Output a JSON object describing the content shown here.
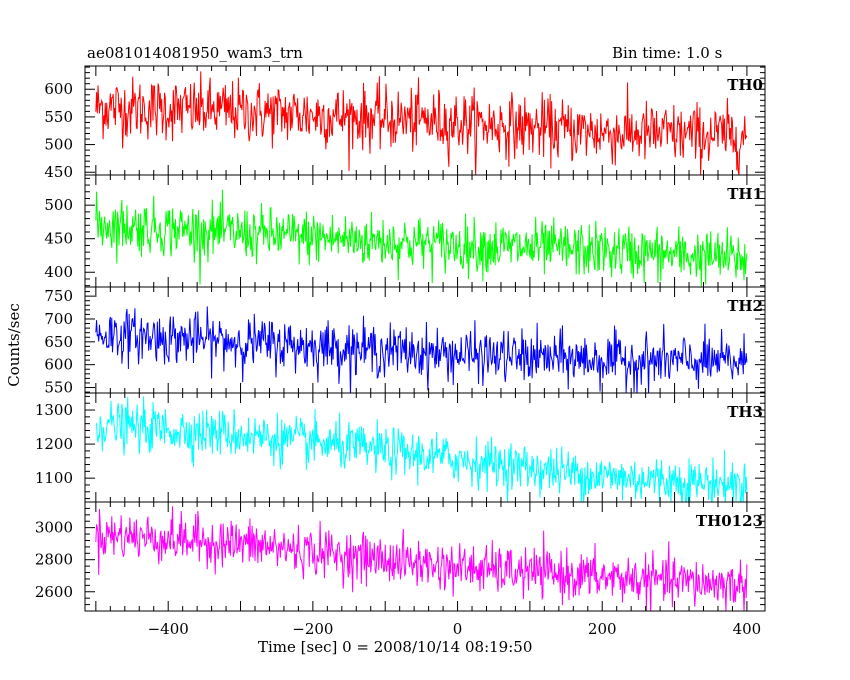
{
  "chart_data": {
    "type": "line",
    "title_left": "ae081014081950_wam3_trn",
    "title_right": "Bin time: 1.0 s",
    "xlabel": "Time [sec] 0 = 2008/10/14 08:19:50",
    "ylabel": "Counts/sec",
    "xlim": [
      -515,
      425
    ],
    "x_ticks": [
      -400,
      -200,
      0,
      200,
      400
    ],
    "x_tick_labels": [
      "−400",
      "−200",
      "0",
      "200",
      "400"
    ],
    "x_range": [
      -500,
      400
    ],
    "bin_seconds": 1.0,
    "panels": [
      {
        "name": "TH0",
        "color": "#ff0000",
        "ylim": [
          445,
          642
        ],
        "yticks": [
          450,
          500,
          550,
          600
        ],
        "trend": [
          [
            -500,
            568
          ],
          [
            -300,
            560
          ],
          [
            0,
            540
          ],
          [
            200,
            522
          ],
          [
            400,
            515
          ]
        ],
        "noise": 28
      },
      {
        "name": "TH1",
        "color": "#00ff00",
        "ylim": [
          378,
          545
        ],
        "yticks": [
          400,
          450,
          500
        ],
        "trend": [
          [
            -500,
            472
          ],
          [
            -300,
            458
          ],
          [
            0,
            440
          ],
          [
            200,
            432
          ],
          [
            400,
            420
          ]
        ],
        "noise": 20
      },
      {
        "name": "TH2",
        "color": "#0000ff",
        "ylim": [
          538,
          770
        ],
        "yticks": [
          550,
          600,
          650,
          700,
          750
        ],
        "trend": [
          [
            -500,
            668
          ],
          [
            -300,
            650
          ],
          [
            0,
            622
          ],
          [
            200,
            610
          ],
          [
            400,
            605
          ]
        ],
        "noise": 28
      },
      {
        "name": "TH3",
        "color": "#00ffff",
        "ylim": [
          1030,
          1350
        ],
        "yticks": [
          1100,
          1200,
          1300
        ],
        "trend": [
          [
            -500,
            1258
          ],
          [
            -300,
            1228
          ],
          [
            0,
            1155
          ],
          [
            200,
            1105
          ],
          [
            400,
            1080
          ]
        ],
        "noise": 35
      },
      {
        "name": "TH0123",
        "color": "#ff00ff",
        "ylim": [
          2480,
          3160
        ],
        "yticks": [
          2600,
          2800,
          3000
        ],
        "trend": [
          [
            -500,
            2960
          ],
          [
            -300,
            2900
          ],
          [
            0,
            2750
          ],
          [
            200,
            2690
          ],
          [
            400,
            2640
          ]
        ],
        "noise": 75
      }
    ]
  }
}
